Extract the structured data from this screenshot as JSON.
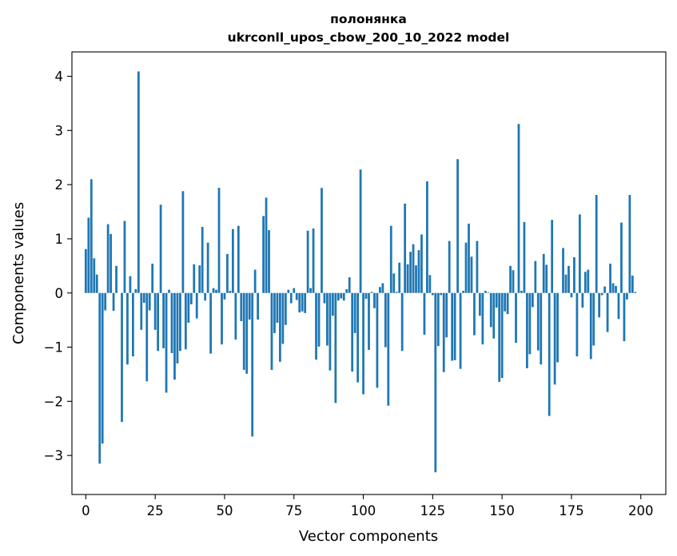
{
  "chart_data": {
    "type": "bar",
    "title": "полонянка",
    "subtitle": "ukrconll_upos_cbow_200_10_2022 model",
    "xlabel": "Vector components",
    "ylabel": "Components values",
    "xlim": [
      -5,
      209
    ],
    "ylim": [
      -3.72,
      4.45
    ],
    "xticks": [
      0,
      25,
      50,
      75,
      100,
      125,
      150,
      175,
      200
    ],
    "yticks": [
      -3,
      -2,
      -1,
      0,
      1,
      2,
      3,
      4
    ],
    "xtick_labels": [
      "0",
      "25",
      "50",
      "75",
      "100",
      "125",
      "150",
      "175",
      "200"
    ],
    "ytick_labels": [
      "−3",
      "−2",
      "−1",
      "0",
      "1",
      "2",
      "3",
      "4"
    ],
    "grid": false,
    "bar_color": "#1f77b4",
    "values": [
      0.81,
      1.39,
      2.1,
      0.64,
      0.34,
      -3.15,
      -2.78,
      -0.32,
      1.27,
      1.09,
      -0.33,
      0.5,
      0,
      -2.38,
      1.33,
      -1.32,
      0.31,
      -1.17,
      0.07,
      4.09,
      -0.68,
      -0.18,
      -1.63,
      -0.32,
      0.54,
      -0.68,
      -1.07,
      1.63,
      -1.02,
      -1.84,
      0.06,
      -1.11,
      -1.6,
      -1.3,
      -1.07,
      1.88,
      -1.04,
      -0.55,
      -0.21,
      0.53,
      -0.47,
      0.51,
      1.22,
      -0.14,
      0.93,
      -1.12,
      0.09,
      0.06,
      1.94,
      -0.95,
      -0.12,
      0.72,
      0.04,
      1.18,
      -0.86,
      1.24,
      -0.52,
      -1.42,
      -1.49,
      -0.49,
      -2.65,
      0.43,
      -0.49,
      0,
      1.42,
      1.76,
      1.16,
      -1.42,
      -0.74,
      -0.55,
      -1.27,
      -0.94,
      -0.59,
      0.06,
      -0.19,
      0.09,
      -0.13,
      -0.36,
      -0.34,
      -0.37,
      1.15,
      0.09,
      1.19,
      -1.23,
      -0.99,
      1.94,
      -0.19,
      -0.97,
      -1.43,
      -0.42,
      -2.03,
      -0.14,
      -0.1,
      -0.14,
      0.07,
      0.29,
      -1.45,
      -0.74,
      -1.65,
      2.28,
      -1.87,
      -0.11,
      -1.05,
      0.02,
      -0.28,
      -1.75,
      0.11,
      0.18,
      -1,
      -2.08,
      1.24,
      0.36,
      0.02,
      0.56,
      -1.07,
      1.65,
      0.53,
      0.76,
      0.9,
      0.51,
      0.79,
      1.08,
      -0.77,
      2.06,
      0.33,
      -0.04,
      -3.31,
      -0.98,
      -0.04,
      -1.46,
      -0.82,
      0.96,
      -1.25,
      -1.24,
      2.47,
      -1.4,
      0.04,
      0.93,
      1.28,
      0.67,
      -0.78,
      0.96,
      -0.42,
      -0.95,
      0.04,
      0.01,
      -0.63,
      -0.84,
      -0.27,
      -1.64,
      -1.57,
      -0.34,
      -0.39,
      0.5,
      0.42,
      -0.92,
      3.12,
      0.04,
      1.31,
      -1.39,
      -1.13,
      -0.26,
      0.59,
      -1.06,
      -1.32,
      0.72,
      0.52,
      -2.27,
      1.35,
      -1.69,
      -1.28,
      0,
      0.83,
      0.34,
      0.5,
      -0.08,
      0.66,
      -1.17,
      1.45,
      -0.27,
      0.39,
      0.43,
      -1.22,
      -0.97,
      1.81,
      -0.45,
      -0.04,
      0.12,
      -0.72,
      0.54,
      0.18,
      0.13,
      -0.48,
      1.3,
      -0.89,
      -0.12,
      1.81,
      0.32,
      0.02
    ]
  }
}
